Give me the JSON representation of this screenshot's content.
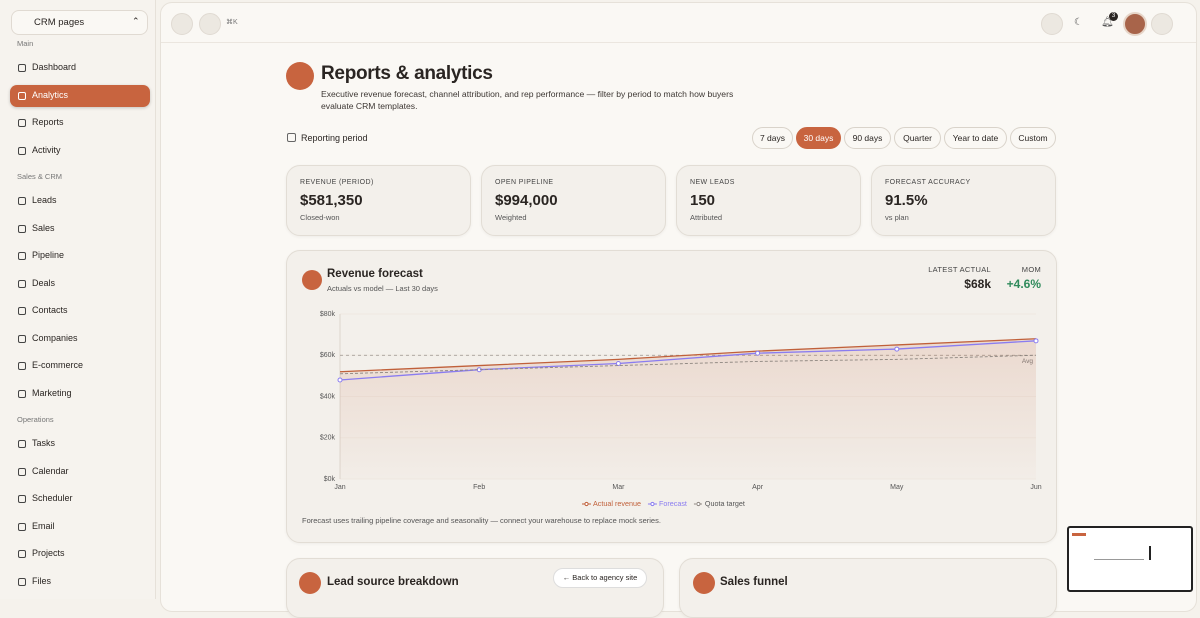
{
  "sidebar": {
    "selector": "CRM pages",
    "sections": [
      {
        "title": "Main",
        "items": [
          {
            "label": "Dashboard"
          },
          {
            "label": "Analytics",
            "active": true
          },
          {
            "label": "Reports"
          },
          {
            "label": "Activity"
          }
        ]
      },
      {
        "title": "Sales & CRM",
        "items": [
          {
            "label": "Leads"
          },
          {
            "label": "Sales"
          },
          {
            "label": "Pipeline"
          },
          {
            "label": "Deals"
          },
          {
            "label": "Contacts"
          },
          {
            "label": "Companies"
          },
          {
            "label": "E-commerce"
          },
          {
            "label": "Marketing"
          }
        ]
      },
      {
        "title": "Operations",
        "items": [
          {
            "label": "Tasks"
          },
          {
            "label": "Calendar"
          },
          {
            "label": "Scheduler"
          },
          {
            "label": "Email"
          },
          {
            "label": "Projects"
          },
          {
            "label": "Files"
          }
        ]
      }
    ]
  },
  "topbar": {
    "shortcut": "⌘K",
    "notifications": 3
  },
  "header": {
    "title": "Reports & analytics",
    "description": "Executive revenue forecast, channel attribution, and rep performance — filter by period to match how buyers evaluate CRM templates."
  },
  "period": {
    "label": "Reporting period",
    "options": [
      "7 days",
      "30 days",
      "90 days",
      "Quarter",
      "Year to date",
      "Custom"
    ],
    "selected": 1
  },
  "kpis": [
    {
      "label": "REVENUE (PERIOD)",
      "value": "$581,350",
      "note": "Closed-won"
    },
    {
      "label": "OPEN PIPELINE",
      "value": "$994,000",
      "note": "Weighted"
    },
    {
      "label": "NEW LEADS",
      "value": "150",
      "note": "Attributed"
    },
    {
      "label": "FORECAST ACCURACY",
      "value": "91.5%",
      "note": "vs plan"
    }
  ],
  "chart_data": {
    "type": "line",
    "title": "Revenue forecast",
    "subtitle": "Actuals vs model — Last 30 days",
    "stats": [
      {
        "label": "LATEST ACTUAL",
        "value": "$68k"
      },
      {
        "label": "MOM",
        "value": "+4.6%",
        "color": "#2f8a5b"
      }
    ],
    "categories": [
      "Jan",
      "Feb",
      "Mar",
      "Apr",
      "May",
      "Jun"
    ],
    "series": [
      {
        "name": "Actual revenue",
        "color": "#c0603a",
        "values": [
          52,
          55,
          58,
          62,
          65,
          68
        ],
        "fill_area": true
      },
      {
        "name": "Forecast",
        "color": "#8a7cf0",
        "values": [
          48,
          53,
          56,
          61,
          63,
          67
        ],
        "markers": true
      },
      {
        "name": "Quota target",
        "color": "#8d8680",
        "values": [
          51,
          53,
          55,
          57,
          58,
          60
        ],
        "dashed": true
      }
    ],
    "ylim": [
      0,
      80
    ],
    "yticks": [
      {
        "value": 0,
        "label": "$0k"
      },
      {
        "value": 20,
        "label": "$20k"
      },
      {
        "value": 40,
        "label": "$40k"
      },
      {
        "value": 60,
        "label": "$60k"
      },
      {
        "value": 80,
        "label": "$80k"
      }
    ],
    "reference_line": {
      "value": 60,
      "label": "Avg"
    },
    "grid": true,
    "note": "Forecast uses trailing pipeline coverage and seasonality — connect your warehouse to replace mock series."
  },
  "bottom_cards": [
    "Lead source breakdown",
    "Sales funnel"
  ],
  "back_link": "← Back to agency site"
}
